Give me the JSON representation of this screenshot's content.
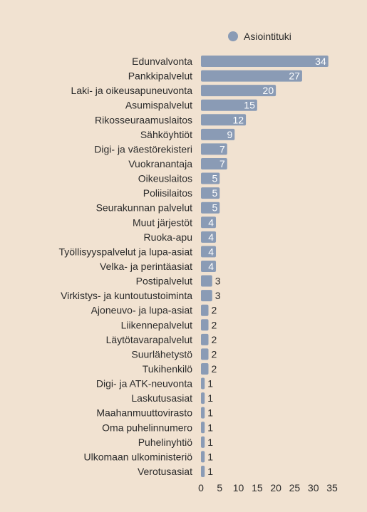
{
  "chart_data": {
    "type": "bar",
    "orientation": "horizontal",
    "legend_position": "top-right",
    "grid": false,
    "xlim": [
      0,
      35
    ],
    "xticks": [
      "0",
      "5",
      "10",
      "15",
      "20",
      "25",
      "30",
      "35"
    ],
    "series": [
      {
        "name": "Asiointituki",
        "color": "#8a9bb5",
        "values": [
          34,
          27,
          20,
          15,
          12,
          9,
          7,
          7,
          5,
          5,
          5,
          4,
          4,
          4,
          4,
          3,
          3,
          2,
          2,
          2,
          2,
          2,
          1,
          1,
          1,
          1,
          1,
          1,
          1
        ]
      }
    ],
    "categories": [
      "Edunvalvonta",
      "Pankkipalvelut",
      "Laki- ja oikeusapuneuvonta",
      "Asumispalvelut",
      "Rikosseuraamuslaitos",
      "Sähköyhtiöt",
      "Digi- ja väestörekisteri",
      "Vuokranantaja",
      "Oikeuslaitos",
      "Poliisilaitos",
      "Seurakunnan palvelut",
      "Muut järjestöt",
      "Ruoka-apu",
      "Työllisyyspalvelut ja lupa-asiat",
      "Velka- ja perintäasiat",
      "Postipalvelut",
      "Virkistys- ja kuntoutustoiminta",
      "Ajoneuvo- ja lupa-asiat",
      "Liikennepalvelut",
      "Läytötavarapalvelut",
      "Suurlähetystö",
      "Tukihenkilö",
      "Digi- ja ATK-neuvonta",
      "Laskutusasiat",
      "Maahanmuuttovirasto",
      "Oma puhelinnumero",
      "Puhelinyhtiö",
      "Ulkomaan ulkoministeriö",
      "Verotusasiat"
    ]
  }
}
